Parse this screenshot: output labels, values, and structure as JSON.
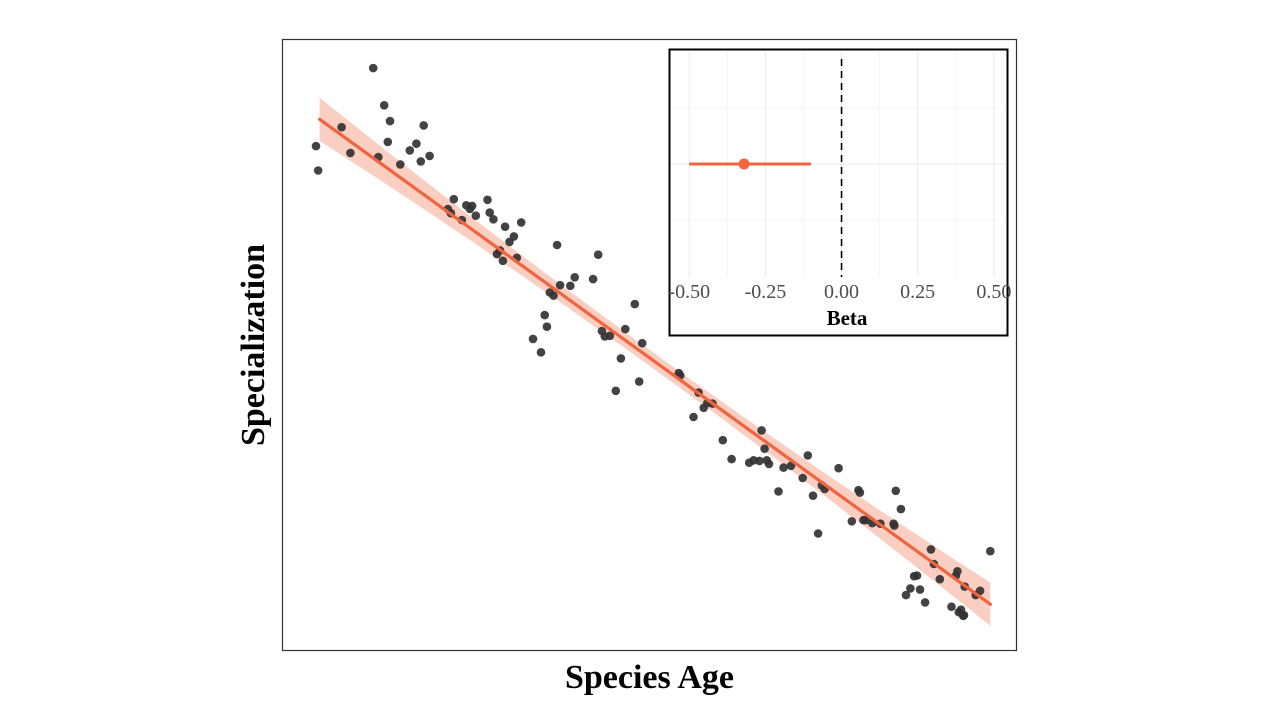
{
  "chart_data": [
    {
      "type": "scatter",
      "xlabel": "Species Age",
      "ylabel": "Specialization",
      "x_ticks": "none",
      "y_ticks": "none",
      "xlim": [
        0,
        100
      ],
      "ylim": [
        0,
        100
      ],
      "grid": false,
      "fit": {
        "type": "linear",
        "x": [
          5,
          96.5
        ],
        "y": [
          87.0,
          7.5
        ],
        "band": true,
        "color": "#f0643f",
        "band_color": "#f9c6b6"
      },
      "point_color": "#333333",
      "points": [
        [
          4.5,
          82.6
        ],
        [
          4.8,
          78.6
        ],
        [
          8.0,
          85.7
        ],
        [
          9.2,
          81.5
        ],
        [
          12.3,
          95.4
        ],
        [
          13.0,
          80.8
        ],
        [
          13.8,
          89.3
        ],
        [
          14.3,
          83.3
        ],
        [
          14.6,
          86.7
        ],
        [
          16.0,
          79.6
        ],
        [
          17.3,
          81.9
        ],
        [
          18.2,
          83.0
        ],
        [
          18.8,
          80.1
        ],
        [
          19.2,
          86.0
        ],
        [
          20.0,
          81.0
        ],
        [
          22.5,
          72.3
        ],
        [
          22.9,
          71.6
        ],
        [
          23.3,
          73.9
        ],
        [
          24.4,
          70.5
        ],
        [
          25.0,
          72.9
        ],
        [
          25.5,
          72.3
        ],
        [
          25.8,
          72.8
        ],
        [
          26.3,
          71.2
        ],
        [
          27.9,
          73.8
        ],
        [
          28.2,
          71.7
        ],
        [
          28.7,
          70.6
        ],
        [
          29.2,
          64.9
        ],
        [
          29.6,
          65.5
        ],
        [
          30.0,
          63.8
        ],
        [
          30.3,
          69.4
        ],
        [
          30.9,
          66.9
        ],
        [
          31.5,
          67.8
        ],
        [
          31.9,
          64.3
        ],
        [
          32.5,
          70.1
        ],
        [
          34.1,
          51.0
        ],
        [
          35.2,
          48.8
        ],
        [
          35.7,
          54.9
        ],
        [
          36.0,
          53.0
        ],
        [
          36.4,
          58.6
        ],
        [
          36.9,
          58.1
        ],
        [
          37.4,
          66.4
        ],
        [
          37.8,
          59.8
        ],
        [
          39.2,
          59.7
        ],
        [
          39.8,
          61.1
        ],
        [
          42.3,
          60.8
        ],
        [
          43.0,
          64.8
        ],
        [
          43.5,
          52.3
        ],
        [
          43.9,
          51.4
        ],
        [
          44.6,
          51.5
        ],
        [
          45.4,
          42.5
        ],
        [
          46.1,
          47.8
        ],
        [
          46.7,
          52.6
        ],
        [
          48.0,
          56.7
        ],
        [
          48.6,
          44.0
        ],
        [
          49.0,
          50.3
        ],
        [
          54.0,
          45.4
        ],
        [
          54.2,
          45.0
        ],
        [
          56.0,
          38.2
        ],
        [
          56.7,
          42.2
        ],
        [
          57.4,
          39.7
        ],
        [
          57.9,
          40.5
        ],
        [
          58.6,
          40.4
        ],
        [
          60.0,
          34.4
        ],
        [
          61.2,
          31.3
        ],
        [
          63.6,
          30.7
        ],
        [
          64.2,
          31.1
        ],
        [
          65.0,
          31.0
        ],
        [
          65.3,
          36.0
        ],
        [
          65.7,
          33.0
        ],
        [
          66.0,
          31.1
        ],
        [
          66.3,
          30.5
        ],
        [
          67.6,
          26.0
        ],
        [
          68.3,
          29.9
        ],
        [
          69.3,
          30.2
        ],
        [
          70.9,
          28.2
        ],
        [
          71.6,
          31.9
        ],
        [
          72.3,
          25.3
        ],
        [
          73.0,
          19.1
        ],
        [
          73.5,
          27.0
        ],
        [
          73.9,
          26.4
        ],
        [
          75.8,
          29.8
        ],
        [
          77.6,
          21.1
        ],
        [
          78.5,
          26.2
        ],
        [
          78.7,
          25.8
        ],
        [
          79.2,
          21.3
        ],
        [
          79.5,
          21.3
        ],
        [
          80.4,
          20.8
        ],
        [
          81.5,
          20.7
        ],
        [
          83.3,
          20.7
        ],
        [
          83.4,
          20.4
        ],
        [
          83.6,
          26.1
        ],
        [
          84.3,
          23.1
        ],
        [
          85.0,
          9.0
        ],
        [
          85.6,
          10.1
        ],
        [
          86.1,
          12.1
        ],
        [
          86.5,
          12.2
        ],
        [
          86.9,
          9.9
        ],
        [
          87.6,
          7.8
        ],
        [
          88.4,
          16.5
        ],
        [
          88.8,
          14.1
        ],
        [
          89.6,
          11.6
        ],
        [
          91.2,
          7.1
        ],
        [
          91.8,
          12.2
        ],
        [
          92.0,
          12.9
        ],
        [
          92.2,
          6.2
        ],
        [
          92.5,
          6.6
        ],
        [
          92.8,
          5.6
        ],
        [
          92.9,
          5.7
        ],
        [
          93.0,
          10.4
        ],
        [
          94.5,
          9.0
        ],
        [
          95.1,
          9.7
        ],
        [
          96.5,
          16.2
        ]
      ]
    },
    {
      "type": "forest",
      "xlabel": "Beta",
      "xlim": [
        -0.56,
        0.54
      ],
      "x_ticks": [
        "-0.50",
        "-0.25",
        "0.00",
        "0.25",
        "0.50"
      ],
      "x_tick_values": [
        -0.5,
        -0.25,
        0.0,
        0.25,
        0.5
      ],
      "ylim": [
        0,
        1
      ],
      "grid": true,
      "reference_line": 0.0,
      "estimate": {
        "beta": -0.32,
        "lower": -0.5,
        "upper": -0.1,
        "y": 0.5
      },
      "color": "#f0643f"
    }
  ]
}
